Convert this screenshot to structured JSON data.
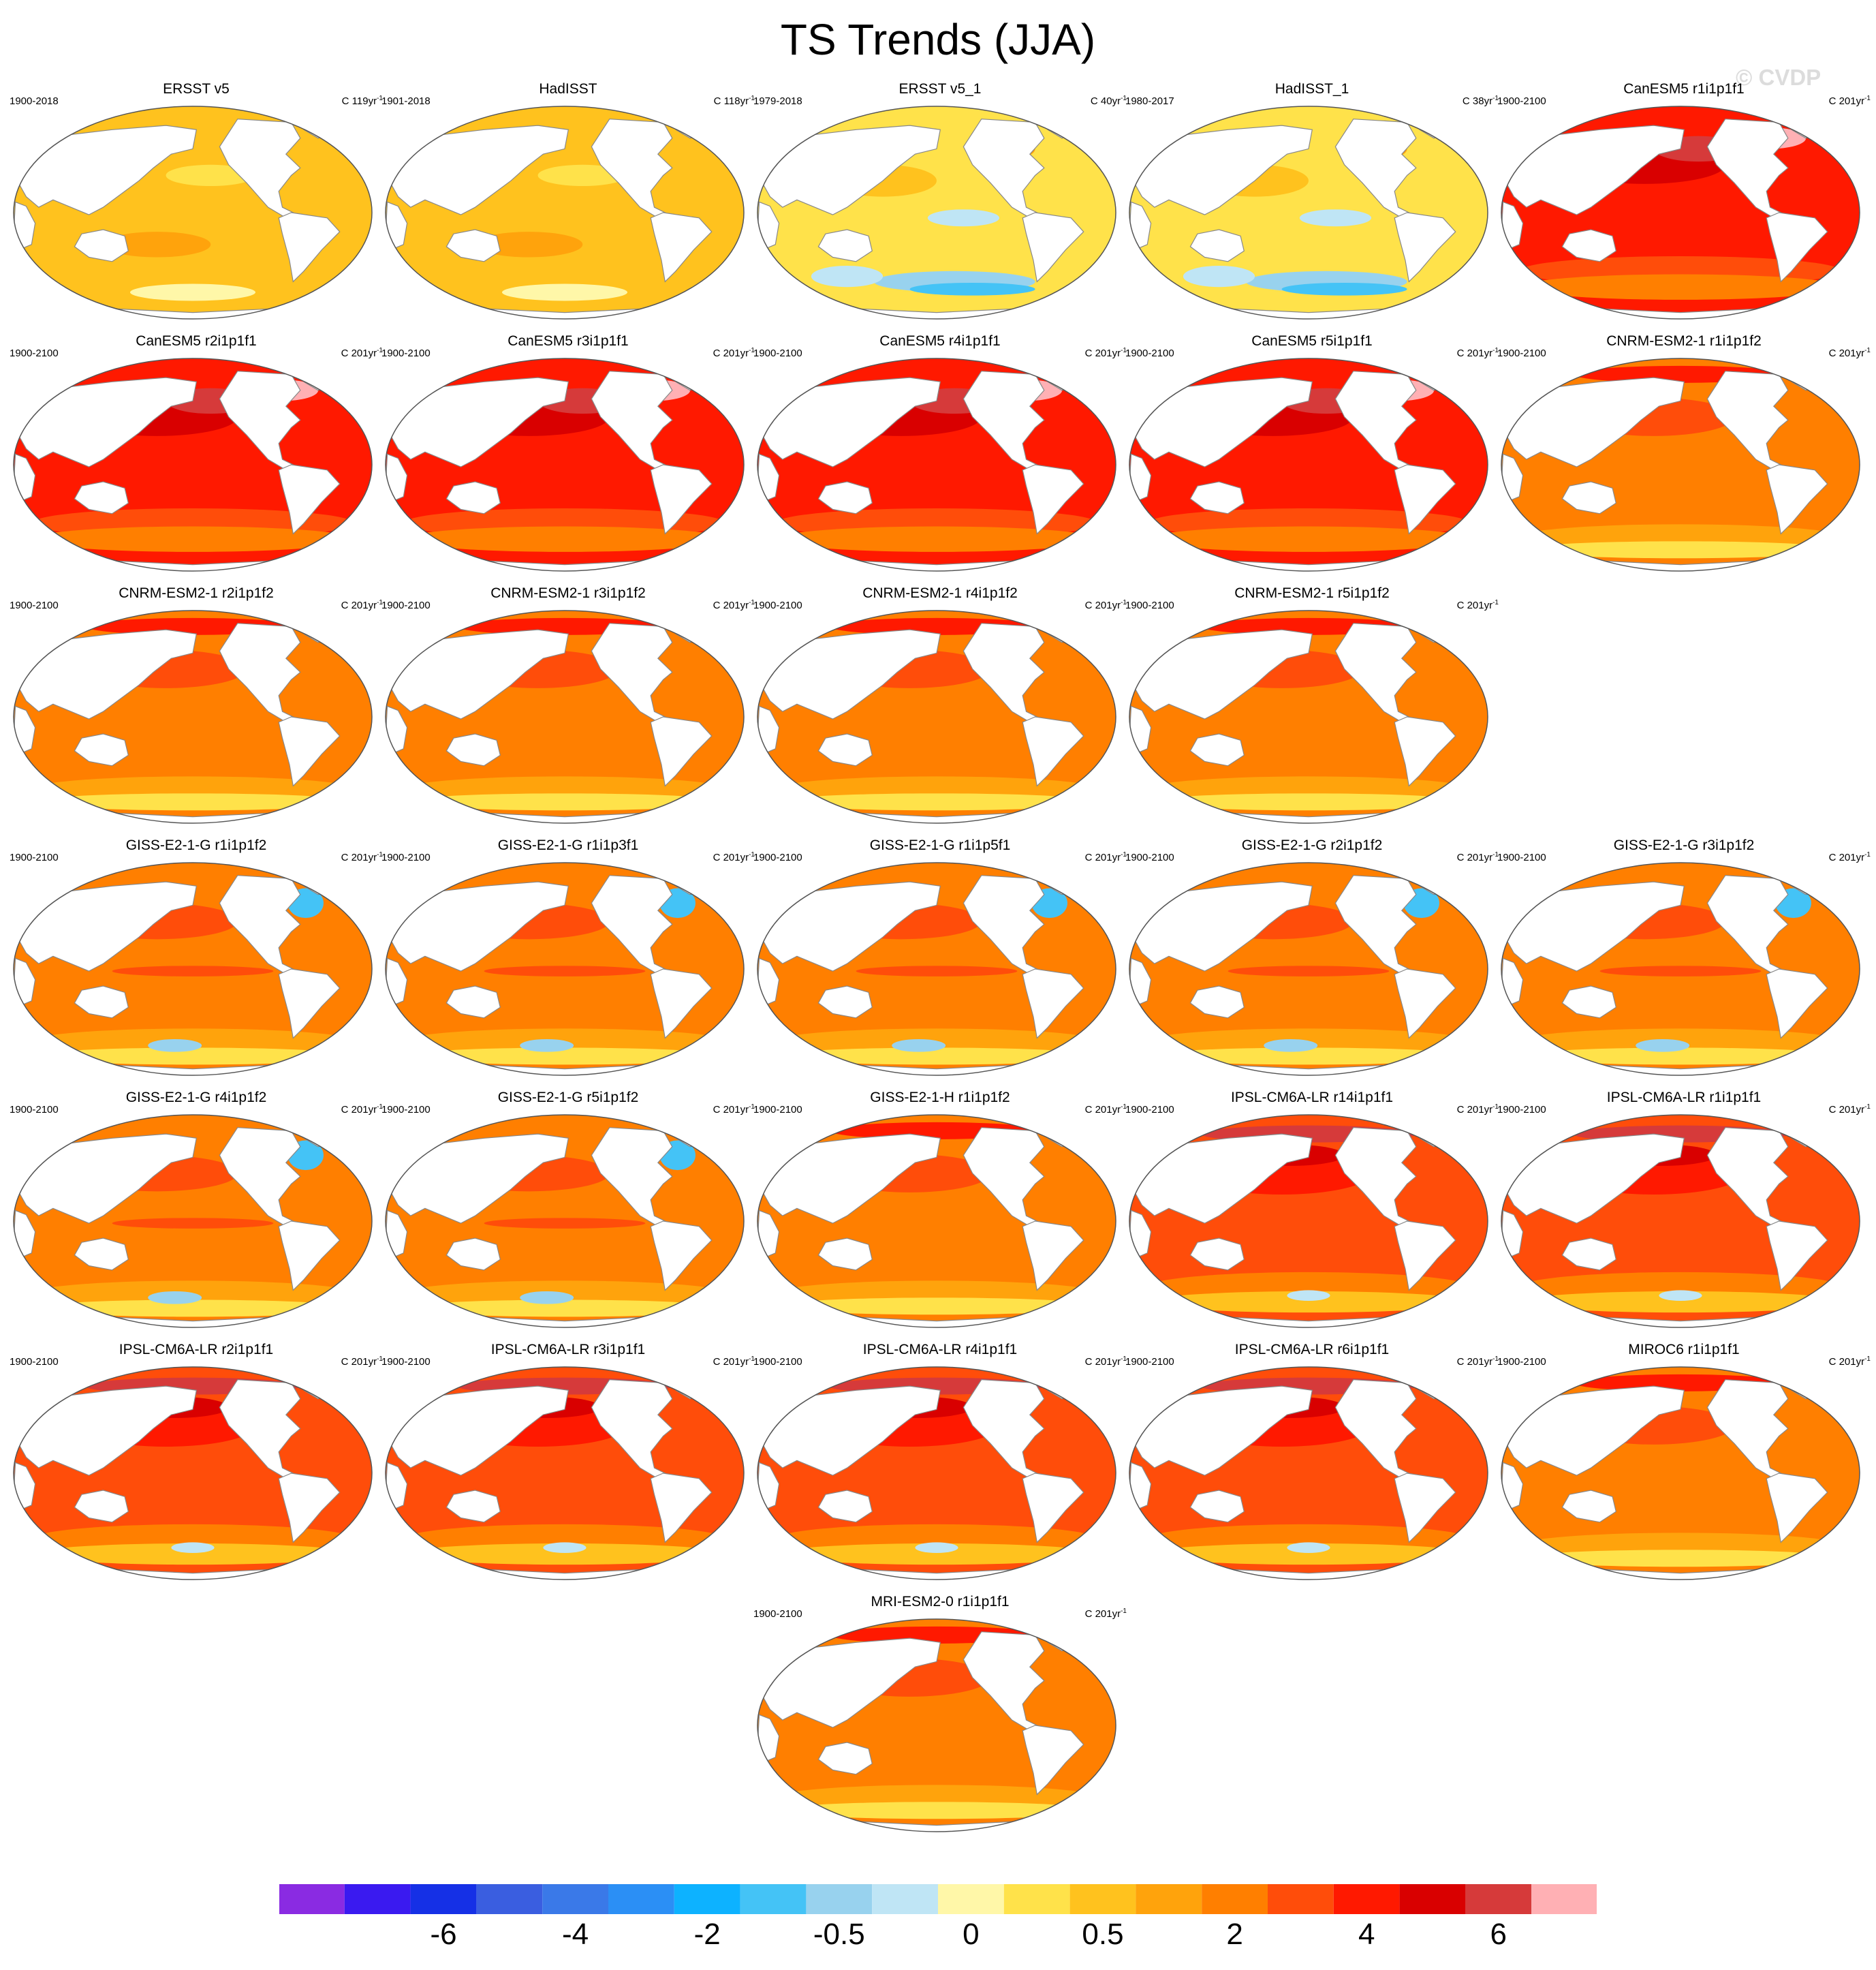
{
  "title": "TS Trends (JJA)",
  "watermark": "© CVDP",
  "chart_data": {
    "type": "heatmap",
    "title": "TS Trends (JJA)",
    "projection": "Robinson (Pacific-centered) global maps, land masked white",
    "colorbar": {
      "levels": [
        -8,
        -7,
        -6,
        -5,
        -4,
        -3,
        -2,
        -1,
        -0.5,
        -0.25,
        0,
        0.25,
        0.5,
        1,
        2,
        3,
        4,
        5,
        6,
        7
      ],
      "colors": [
        "#8a2be2",
        "#3a1af0",
        "#1530e6",
        "#3a5ee0",
        "#3a79e8",
        "#2b8ff5",
        "#0db2ff",
        "#44c3f6",
        "#98d2ee",
        "#bfe5f5",
        "#fff7a8",
        "#ffe24a",
        "#ffc21e",
        "#ffa30c",
        "#ff7f00",
        "#ff4d0a",
        "#ff1900",
        "#d90000",
        "#d63a3a",
        "#ffb0b4"
      ],
      "tick_labels": [
        "-6",
        "-4",
        "-2",
        "-0.5",
        "0",
        "0.5",
        "2",
        "4",
        "6"
      ],
      "tick_positions": [
        -6,
        -4,
        -2,
        -0.5,
        0,
        0.5,
        2,
        4,
        6
      ]
    },
    "panels": [
      {
        "title": "ERSST v5",
        "period": "1900-2018",
        "trend_label": "C 119yr",
        "style": "obs_warm"
      },
      {
        "title": "HadISST",
        "period": "1901-2018",
        "trend_label": "C 118yr",
        "style": "obs_warm"
      },
      {
        "title": "ERSST v5_1",
        "period": "1979-2018",
        "trend_label": "C 40yr",
        "style": "obs_mixed"
      },
      {
        "title": "HadISST_1",
        "period": "1980-2017",
        "trend_label": "C 38yr",
        "style": "obs_mixed"
      },
      {
        "title": "CanESM5 r1i1p1f1",
        "period": "1900-2100",
        "trend_label": "C 201yr",
        "style": "very_hot"
      },
      {
        "title": "CanESM5 r2i1p1f1",
        "period": "1900-2100",
        "trend_label": "C 201yr",
        "style": "very_hot"
      },
      {
        "title": "CanESM5 r3i1p1f1",
        "period": "1900-2100",
        "trend_label": "C 201yr",
        "style": "very_hot"
      },
      {
        "title": "CanESM5 r4i1p1f1",
        "period": "1900-2100",
        "trend_label": "C 201yr",
        "style": "very_hot"
      },
      {
        "title": "CanESM5 r5i1p1f1",
        "period": "1900-2100",
        "trend_label": "C 201yr",
        "style": "very_hot"
      },
      {
        "title": "CNRM-ESM2-1 r1i1p1f2",
        "period": "1900-2100",
        "trend_label": "C 201yr",
        "style": "warm"
      },
      {
        "title": "CNRM-ESM2-1 r2i1p1f2",
        "period": "1900-2100",
        "trend_label": "C 201yr",
        "style": "warm"
      },
      {
        "title": "CNRM-ESM2-1 r3i1p1f2",
        "period": "1900-2100",
        "trend_label": "C 201yr",
        "style": "warm"
      },
      {
        "title": "CNRM-ESM2-1 r4i1p1f2",
        "period": "1900-2100",
        "trend_label": "C 201yr",
        "style": "warm"
      },
      {
        "title": "CNRM-ESM2-1 r5i1p1f2",
        "period": "1900-2100",
        "trend_label": "C 201yr",
        "style": "warm"
      },
      {
        "title": "GISS-E2-1-G r1i1p1f2",
        "period": "1900-2100",
        "trend_label": "C 201yr",
        "style": "giss"
      },
      {
        "title": "GISS-E2-1-G r1i1p3f1",
        "period": "1900-2100",
        "trend_label": "C 201yr",
        "style": "giss"
      },
      {
        "title": "GISS-E2-1-G r1i1p5f1",
        "period": "1900-2100",
        "trend_label": "C 201yr",
        "style": "giss"
      },
      {
        "title": "GISS-E2-1-G r2i1p1f2",
        "period": "1900-2100",
        "trend_label": "C 201yr",
        "style": "giss"
      },
      {
        "title": "GISS-E2-1-G r3i1p1f2",
        "period": "1900-2100",
        "trend_label": "C 201yr",
        "style": "giss"
      },
      {
        "title": "GISS-E2-1-G r4i1p1f2",
        "period": "1900-2100",
        "trend_label": "C 201yr",
        "style": "giss"
      },
      {
        "title": "GISS-E2-1-G r5i1p1f2",
        "period": "1900-2100",
        "trend_label": "C 201yr",
        "style": "giss"
      },
      {
        "title": "GISS-E2-1-H r1i1p1f2",
        "period": "1900-2100",
        "trend_label": "C 201yr",
        "style": "warm"
      },
      {
        "title": "IPSL-CM6A-LR r14i1p1f1",
        "period": "1900-2100",
        "trend_label": "C 201yr",
        "style": "hot"
      },
      {
        "title": "IPSL-CM6A-LR r1i1p1f1",
        "period": "1900-2100",
        "trend_label": "C 201yr",
        "style": "hot"
      },
      {
        "title": "IPSL-CM6A-LR r2i1p1f1",
        "period": "1900-2100",
        "trend_label": "C 201yr",
        "style": "hot"
      },
      {
        "title": "IPSL-CM6A-LR r3i1p1f1",
        "period": "1900-2100",
        "trend_label": "C 201yr",
        "style": "hot"
      },
      {
        "title": "IPSL-CM6A-LR r4i1p1f1",
        "period": "1900-2100",
        "trend_label": "C 201yr",
        "style": "hot"
      },
      {
        "title": "IPSL-CM6A-LR r6i1p1f1",
        "period": "1900-2100",
        "trend_label": "C 201yr",
        "style": "hot"
      },
      {
        "title": "MIROC6 r1i1p1f1",
        "period": "1900-2100",
        "trend_label": "C 201yr",
        "style": "warm"
      },
      {
        "title": "MRI-ESM2-0 r1i1p1f1",
        "period": "1900-2100",
        "trend_label": "C 201yr",
        "style": "warm"
      }
    ],
    "trend_exponent": "-1"
  },
  "icons": {
    "land": "land-mask",
    "ocean": "ocean-field"
  }
}
